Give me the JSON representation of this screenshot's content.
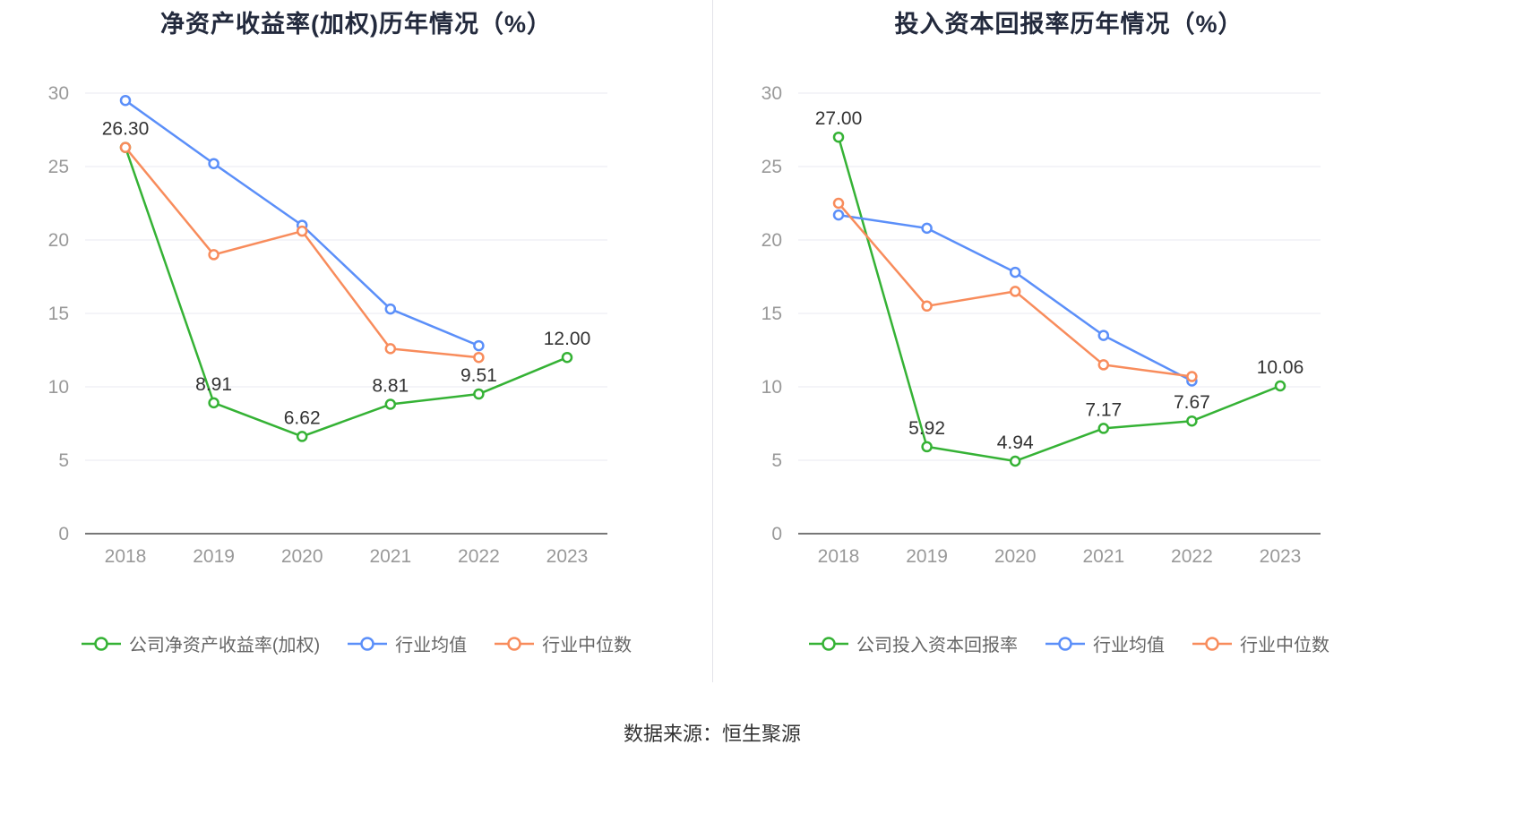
{
  "footer": {
    "source_text": "数据来源：恒生聚源"
  },
  "colors": {
    "company_green": "#35b235",
    "industry_mean_blue": "#5b8ff9",
    "industry_median_orange": "#f88c5c",
    "grid": "#e9e9f0",
    "axis": "#4a4a4a",
    "tick_text": "#999999",
    "label_text": "#333333"
  },
  "chart_data": [
    {
      "type": "line",
      "title": "净资产收益率(加权)历年情况（%）",
      "categories": [
        "2018",
        "2019",
        "2020",
        "2021",
        "2022",
        "2023"
      ],
      "ylim": [
        0,
        30
      ],
      "yticks": [
        0,
        5,
        10,
        15,
        20,
        25,
        30
      ],
      "grid": true,
      "legend_position": "bottom",
      "series": [
        {
          "name": "公司净资产收益率(加权)",
          "color": "#35b235",
          "values": [
            26.3,
            8.91,
            6.62,
            8.81,
            9.51,
            12.0
          ],
          "point_labels": [
            "26.30",
            "8.91",
            "6.62",
            "8.81",
            "9.51",
            "12.00"
          ]
        },
        {
          "name": "行业均值",
          "color": "#5b8ff9",
          "values": [
            29.5,
            25.2,
            21.0,
            15.3,
            12.8,
            null
          ]
        },
        {
          "name": "行业中位数",
          "color": "#f88c5c",
          "values": [
            26.3,
            19.0,
            20.6,
            12.6,
            12.0,
            null
          ]
        }
      ]
    },
    {
      "type": "line",
      "title": "投入资本回报率历年情况（%）",
      "categories": [
        "2018",
        "2019",
        "2020",
        "2021",
        "2022",
        "2023"
      ],
      "ylim": [
        0,
        30
      ],
      "yticks": [
        0,
        5,
        10,
        15,
        20,
        25,
        30
      ],
      "grid": true,
      "legend_position": "bottom",
      "series": [
        {
          "name": "公司投入资本回报率",
          "color": "#35b235",
          "values": [
            27.0,
            5.92,
            4.94,
            7.17,
            7.67,
            10.06
          ],
          "point_labels": [
            "27.00",
            "5.92",
            "4.94",
            "7.17",
            "7.67",
            "10.06"
          ]
        },
        {
          "name": "行业均值",
          "color": "#5b8ff9",
          "values": [
            21.7,
            20.8,
            17.8,
            13.5,
            10.4,
            null
          ]
        },
        {
          "name": "行业中位数",
          "color": "#f88c5c",
          "values": [
            22.5,
            15.5,
            16.5,
            11.5,
            10.7,
            null
          ]
        }
      ]
    }
  ]
}
